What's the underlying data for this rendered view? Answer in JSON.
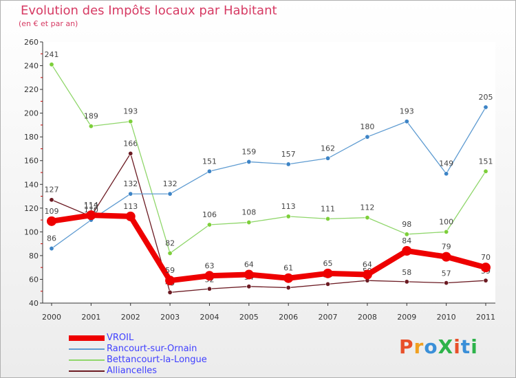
{
  "header": {
    "title": "Evolution des Impôts locaux par Habitant",
    "subtitle": "(en € et par an)"
  },
  "logo": {
    "text": "ProXiti",
    "colors": [
      "#e8502a",
      "#f0a020",
      "#3a8fd8",
      "#2db34a",
      "#e8502a",
      "#3a8fd8",
      "#2db34a"
    ]
  },
  "chart_data": {
    "type": "line",
    "title": "Evolution des Impôts locaux par Habitant",
    "subtitle": "(en € et par an)",
    "x": [
      "2000",
      "2001",
      "2002",
      "2003",
      "2004",
      "2005",
      "2006",
      "2007",
      "2008",
      "2009",
      "2010",
      "2011"
    ],
    "ylim": [
      40,
      260
    ],
    "yticks": [
      40,
      60,
      80,
      100,
      120,
      140,
      160,
      180,
      200,
      220,
      240,
      260
    ],
    "grid": false,
    "legend_position": "bottom-left",
    "series": [
      {
        "name": "Alliancelles",
        "color": "#6b1a22",
        "point_color": "#6b1a22",
        "values": [
          127,
          113,
          166,
          49,
          52,
          54,
          53,
          56,
          59,
          58,
          57,
          59
        ],
        "labels_below": false
      },
      {
        "name": "Bettancourt-la-Longue",
        "color": "#8fd66a",
        "point_color": "#7dcf3a",
        "values": [
          241,
          189,
          193,
          82,
          106,
          108,
          113,
          111,
          112,
          98,
          100,
          151
        ]
      },
      {
        "name": "Rancourt-sur-Ornain",
        "color": "#5e9bd1",
        "point_color": "#3d84c6",
        "values": [
          86,
          110,
          132,
          132,
          151,
          159,
          157,
          162,
          180,
          193,
          149,
          205
        ]
      },
      {
        "name": "VROIL",
        "color": "#ee0000",
        "point_color": "#ee0000",
        "values": [
          109,
          114,
          113,
          59,
          63,
          64,
          61,
          65,
          64,
          84,
          79,
          70
        ]
      }
    ]
  }
}
